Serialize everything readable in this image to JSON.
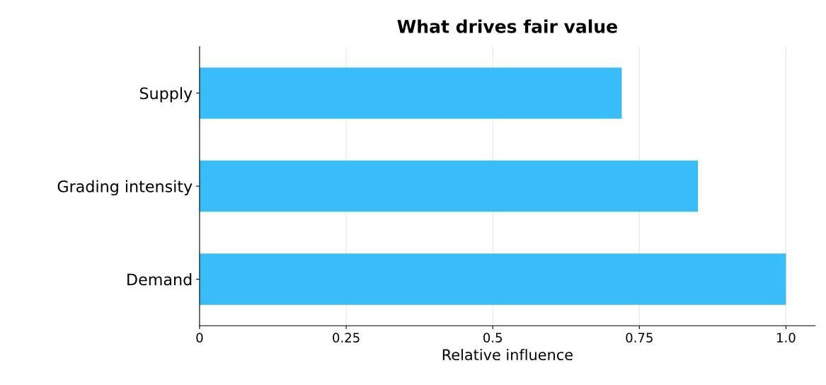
{
  "chart_data": {
    "type": "bar",
    "orientation": "horizontal",
    "title": "What drives fair value",
    "xlabel": "Relative influence",
    "categories": [
      "Supply",
      "Grading intensity",
      "Demand"
    ],
    "values": [
      0.72,
      0.85,
      1.0
    ],
    "color": "#38bdf8",
    "xlim": [
      0,
      1.05
    ],
    "xticks": [
      0,
      0.25,
      0.5,
      0.75,
      {
        "value": 1.0,
        "label": "1.0"
      }
    ],
    "grid": "x"
  }
}
